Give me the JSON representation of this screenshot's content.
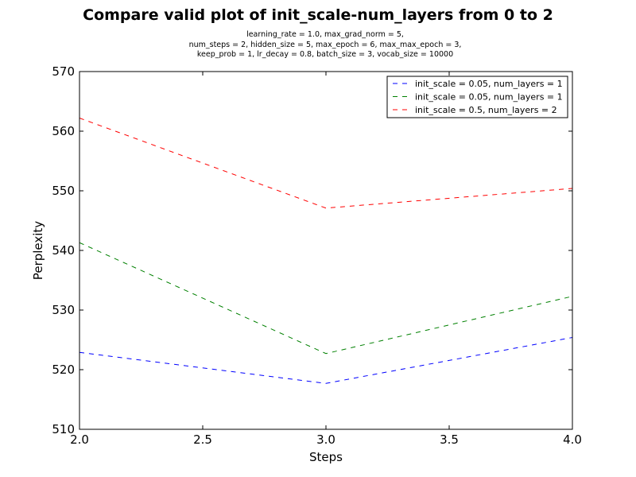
{
  "chart_data": {
    "type": "line",
    "title": "Compare valid plot of init_scale-num_layers from 0 to 2",
    "subtitle_lines": [
      "learning_rate = 1.0, max_grad_norm = 5,",
      "num_steps = 2, hidden_size = 5, max_epoch = 6, max_max_epoch = 3,",
      "keep_prob = 1, lr_decay = 0.8, batch_size = 3, vocab_size = 10000"
    ],
    "xlabel": "Steps",
    "ylabel": "Perplexity",
    "xlim": [
      2.0,
      4.0
    ],
    "ylim": [
      510,
      570
    ],
    "xticks": [
      2.0,
      2.5,
      3.0,
      3.5,
      4.0
    ],
    "xtick_labels": [
      "2.0",
      "2.5",
      "3.0",
      "3.5",
      "4.0"
    ],
    "yticks": [
      510,
      520,
      530,
      540,
      550,
      560,
      570
    ],
    "ytick_labels": [
      "510",
      "520",
      "530",
      "540",
      "550",
      "560",
      "570"
    ],
    "grid": false,
    "legend_position": "top-right",
    "line_style": "dashed",
    "x": [
      2.0,
      3.0,
      4.0
    ],
    "series": [
      {
        "name": "init_scale = 0.05, num_layers = 1",
        "color": "#0000ff",
        "values": [
          522.9,
          517.7,
          525.4
        ]
      },
      {
        "name": "init_scale = 0.05, num_layers = 1",
        "color": "#008000",
        "values": [
          541.3,
          522.7,
          532.3
        ]
      },
      {
        "name": "init_scale = 0.5, num_layers = 2",
        "color": "#ff0000",
        "values": [
          562.2,
          547.1,
          550.4
        ]
      }
    ]
  }
}
